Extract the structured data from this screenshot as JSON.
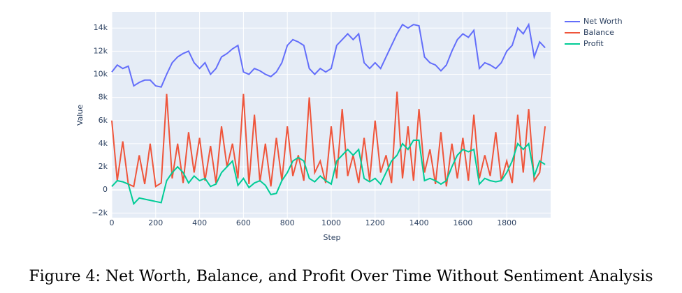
{
  "chart_data": {
    "type": "line",
    "title": "Figure 4: Net Worth, Balance, and Profit Over Time Without Sentiment Analysis",
    "x_label": "Step",
    "y_label": "Value",
    "x": [
      0,
      25,
      50,
      75,
      100,
      125,
      150,
      175,
      200,
      225,
      250,
      275,
      300,
      325,
      350,
      375,
      400,
      425,
      450,
      475,
      500,
      525,
      550,
      575,
      600,
      625,
      650,
      675,
      700,
      725,
      750,
      775,
      800,
      825,
      850,
      875,
      900,
      925,
      950,
      975,
      1000,
      1025,
      1050,
      1075,
      1100,
      1125,
      1150,
      1175,
      1200,
      1225,
      1250,
      1275,
      1300,
      1325,
      1350,
      1375,
      1400,
      1425,
      1450,
      1475,
      1500,
      1525,
      1550,
      1575,
      1600,
      1625,
      1650,
      1675,
      1700,
      1725,
      1750,
      1775,
      1800,
      1825,
      1850,
      1875,
      1900,
      1925,
      1950,
      1975
    ],
    "series": [
      {
        "name": "Net Worth",
        "color": "#636efa",
        "values": [
          10200,
          10800,
          10500,
          10700,
          9000,
          9300,
          9500,
          9500,
          9000,
          8900,
          10000,
          11000,
          11500,
          11800,
          12000,
          11000,
          10500,
          11000,
          10000,
          10500,
          11500,
          11800,
          12200,
          12500,
          10200,
          10000,
          10500,
          10300,
          10000,
          9800,
          10200,
          11000,
          12500,
          13000,
          12800,
          12500,
          10500,
          10000,
          10500,
          10200,
          10500,
          12500,
          13000,
          13500,
          13000,
          13500,
          11000,
          10500,
          11000,
          10500,
          11500,
          12500,
          13500,
          14300,
          14000,
          14300,
          14200,
          11500,
          11000,
          10800,
          10300,
          10800,
          12000,
          13000,
          13500,
          13200,
          13800,
          10500,
          11000,
          10800,
          10500,
          11000,
          12000,
          12500,
          14000,
          13500,
          14300,
          11500,
          12800,
          12300
        ]
      },
      {
        "name": "Balance",
        "color": "#ef553b",
        "values": [
          6000,
          800,
          4200,
          500,
          300,
          3000,
          500,
          4000,
          300,
          600,
          8300,
          1000,
          4000,
          600,
          5000,
          1500,
          4500,
          800,
          3800,
          600,
          5500,
          2000,
          4000,
          1000,
          8300,
          500,
          6500,
          700,
          4000,
          300,
          4500,
          800,
          5500,
          1200,
          3000,
          800,
          8000,
          1500,
          2500,
          600,
          5500,
          1000,
          7000,
          1200,
          3000,
          600,
          4500,
          800,
          6000,
          1500,
          3000,
          600,
          8500,
          1000,
          5500,
          800,
          7000,
          1500,
          3500,
          500,
          5000,
          300,
          4000,
          1000,
          4500,
          800,
          6500,
          1000,
          3000,
          1200,
          5000,
          800,
          2500,
          600,
          6500,
          1500,
          7000,
          800,
          1500,
          5500
        ]
      },
      {
        "name": "Profit",
        "color": "#00cc96",
        "values": [
          300,
          800,
          700,
          500,
          -1200,
          -700,
          -800,
          -900,
          -1000,
          -1100,
          800,
          1500,
          2000,
          1500,
          600,
          1200,
          800,
          1000,
          300,
          500,
          1500,
          2000,
          2500,
          400,
          1000,
          200,
          600,
          800,
          400,
          -400,
          -300,
          800,
          1500,
          2500,
          2800,
          2500,
          1000,
          700,
          1200,
          800,
          500,
          2500,
          3000,
          3500,
          3000,
          3500,
          1000,
          700,
          1000,
          500,
          1500,
          2500,
          3000,
          4000,
          3500,
          4300,
          4300,
          800,
          1000,
          800,
          500,
          800,
          2000,
          3000,
          3500,
          3300,
          3500,
          500,
          1000,
          800,
          700,
          800,
          1500,
          2500,
          4000,
          3500,
          4000,
          1200,
          2500,
          2200
        ]
      }
    ],
    "xlim": [
      0,
      2000
    ],
    "xticks": [
      0,
      200,
      400,
      600,
      800,
      1000,
      1200,
      1400,
      1600,
      1800
    ],
    "ylim": [
      -2400,
      15400
    ],
    "yticks": [
      {
        "value": -2000,
        "label": "−2k"
      },
      0,
      {
        "value": 2000,
        "label": "2k"
      },
      {
        "value": 4000,
        "label": "4k"
      },
      {
        "value": 6000,
        "label": "6k"
      },
      {
        "value": 8000,
        "label": "8k"
      },
      {
        "value": 10000,
        "label": "10k"
      },
      {
        "value": 12000,
        "label": "12k"
      },
      {
        "value": 14000,
        "label": "14k"
      }
    ],
    "grid": true,
    "legend": "top-right",
    "background": "#e5ecf6"
  }
}
